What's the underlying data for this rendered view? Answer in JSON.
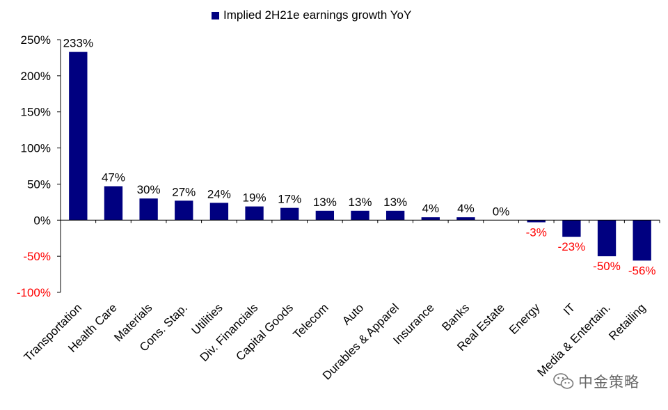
{
  "legend": {
    "label": "Implied 2H21e earnings growth YoY",
    "color": "#000080"
  },
  "watermark": {
    "text": "中金策略",
    "icon": "wechat-icon"
  },
  "chart_data": {
    "type": "bar",
    "categories": [
      "Transportation",
      "Health Care",
      "Materials",
      "Cons. Stap.",
      "Utilities",
      "Div. Financials",
      "Capital Goods",
      "Telecom",
      "Auto",
      "Durables & Apparel",
      "Insurance",
      "Banks",
      "Real Estate",
      "Energy",
      "IT",
      "Media & Entertain.",
      "Retailing"
    ],
    "series": [
      {
        "name": "Implied 2H21e earnings growth YoY",
        "values": [
          233,
          47,
          30,
          27,
          24,
          19,
          17,
          13,
          13,
          13,
          4,
          4,
          0,
          -3,
          -23,
          -50,
          -56
        ],
        "data_labels": [
          "233%",
          "47%",
          "30%",
          "27%",
          "24%",
          "19%",
          "17%",
          "13%",
          "13%",
          "13%",
          "4%",
          "4%",
          "0%",
          "-3%",
          "-23%",
          "-50%",
          "-56%"
        ]
      }
    ],
    "yticks": [
      250,
      200,
      150,
      100,
      50,
      0,
      -50,
      -100
    ],
    "ytick_labels": [
      "250%",
      "200%",
      "150%",
      "100%",
      "50%",
      "0%",
      "-50%",
      "-100%"
    ],
    "ylim": [
      -100,
      250
    ],
    "bar_color": "#000080",
    "positive_label_color": "#000000",
    "negative_label_color": "#ff0000",
    "grid": false,
    "legend_position": "top"
  }
}
